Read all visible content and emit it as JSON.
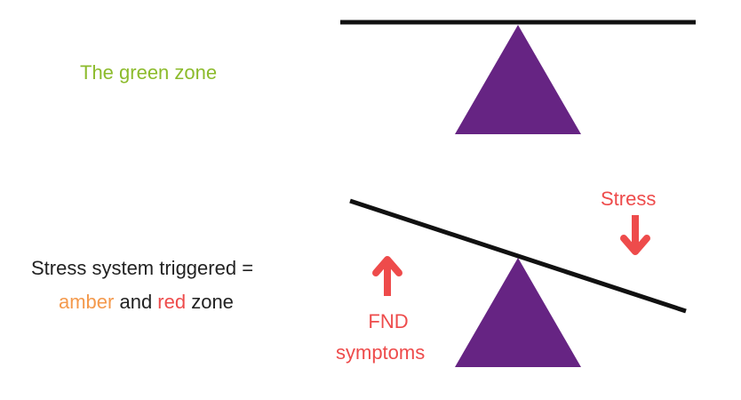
{
  "colors": {
    "green": "#8cbb2c",
    "amber": "#f4994c",
    "red": "#ee4b4b",
    "purple": "#662483",
    "line": "#111111",
    "text": "#222222"
  },
  "top_panel": {
    "label": "The green zone",
    "beam": "level"
  },
  "bottom_panel": {
    "line1": "Stress system triggered =",
    "amber_word": "amber",
    "and_word": " and ",
    "red_word": "red",
    "zone_word": " zone",
    "stress_label": "Stress",
    "fnd_line1": "FND",
    "fnd_line2": "symptoms",
    "beam": "tilted"
  },
  "icons": {
    "fulcrum": "triangle-icon",
    "up": "arrow-up-icon",
    "down": "arrow-down-icon"
  }
}
